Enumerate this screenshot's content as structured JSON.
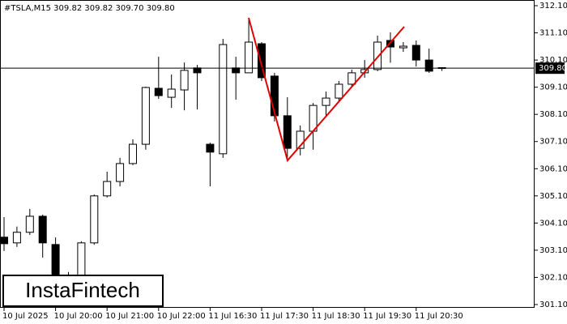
{
  "chart_data": {
    "type": "candlestick",
    "title": "#TSLA,M15  309.82 309.82 309.70 309.80",
    "watermark": "InstaFintech",
    "categories": [
      "10 Jul 2025",
      null,
      null,
      null,
      "10 Jul 20:00",
      null,
      null,
      null,
      "10 Jul 21:00",
      null,
      null,
      null,
      "10 Jul 22:00",
      null,
      null,
      null,
      "11 Jul 16:30",
      null,
      null,
      null,
      "11 Jul 17:30",
      null,
      null,
      null,
      "11 Jul 18:30",
      null,
      null,
      null,
      "11 Jul 19:30",
      null,
      null,
      null,
      "11 Jul 20:30",
      null,
      null
    ],
    "open": [
      303.58,
      303.37,
      303.76,
      304.35,
      303.31,
      301.4,
      301.2,
      303.37,
      305.1,
      305.63,
      306.29,
      307.0,
      309.06,
      308.73,
      309.0,
      309.81,
      307.0,
      306.65,
      309.81,
      309.63,
      310.7,
      309.51,
      308.05,
      306.85,
      307.48,
      308.43,
      308.7,
      309.21,
      309.63,
      309.75,
      310.82,
      310.55,
      310.64,
      310.1,
      309.82
    ],
    "high": [
      304.32,
      303.97,
      304.62,
      304.41,
      303.57,
      302.3,
      303.43,
      305.15,
      305.99,
      306.5,
      307.18,
      309.12,
      310.22,
      309.57,
      310.01,
      309.92,
      307.06,
      310.88,
      310.22,
      311.65,
      310.76,
      309.63,
      308.73,
      307.69,
      308.52,
      308.94,
      309.33,
      309.75,
      310.1,
      311.0,
      311.12,
      310.76,
      310.82,
      310.52,
      309.82
    ],
    "low": [
      303.07,
      303.22,
      303.66,
      302.83,
      301.0,
      301.2,
      301.1,
      303.3,
      305.04,
      305.45,
      306.23,
      306.8,
      308.67,
      308.34,
      308.25,
      308.28,
      305.45,
      306.5,
      308.64,
      309.63,
      309.33,
      307.84,
      306.5,
      306.59,
      306.8,
      308.05,
      308.55,
      309.09,
      309.45,
      309.69,
      310.0,
      310.4,
      309.86,
      309.63,
      309.7
    ],
    "close": [
      303.34,
      303.76,
      304.35,
      303.37,
      301.3,
      302.1,
      303.37,
      305.1,
      305.63,
      306.29,
      307.0,
      309.09,
      308.79,
      309.03,
      309.72,
      309.63,
      306.71,
      310.67,
      309.63,
      310.76,
      309.45,
      308.05,
      306.85,
      307.48,
      308.43,
      308.7,
      309.21,
      309.63,
      309.75,
      310.76,
      310.58,
      310.61,
      310.1,
      309.69,
      309.8
    ],
    "up_color": "#ffffff",
    "down_color": "#000000",
    "line_color": "#000000",
    "current_price": {
      "value": 309.8,
      "label": "309.80"
    },
    "ylim": [
      300.98,
      312.31
    ],
    "yticks": [
      {
        "value": 312.1,
        "label": "312.10"
      },
      {
        "value": 311.1,
        "label": "311.10"
      },
      {
        "value": 310.1,
        "label": "310.10"
      },
      {
        "value": 309.1,
        "label": "309.10"
      },
      {
        "value": 308.1,
        "label": "308.10"
      },
      {
        "value": 307.1,
        "label": "307.10"
      },
      {
        "value": 306.1,
        "label": "306.10"
      },
      {
        "value": 305.1,
        "label": "305.10"
      },
      {
        "value": 304.1,
        "label": "304.10"
      },
      {
        "value": 303.1,
        "label": "303.10"
      },
      {
        "value": 302.1,
        "label": "302.10"
      },
      {
        "value": 301.1,
        "label": "301.10"
      }
    ]
  }
}
